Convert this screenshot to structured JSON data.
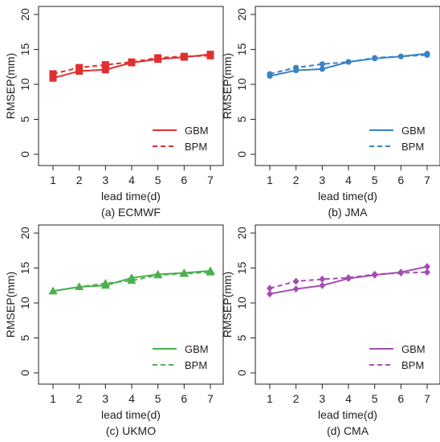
{
  "chart_data": [
    {
      "type": "line",
      "caption": "(a) ECMWF",
      "xlabel": "lead time(d)",
      "ylabel": "RMSEP(mm)",
      "x": [
        1,
        2,
        3,
        4,
        5,
        6,
        7
      ],
      "xlim": [
        1,
        7
      ],
      "ylim": [
        0,
        20
      ],
      "yticks": [
        0,
        5,
        10,
        15,
        20
      ],
      "color": "#e03030",
      "marker": "square",
      "legend_position": "bottom-right",
      "series": [
        {
          "name": "GBM",
          "style": "solid",
          "values": [
            10.9,
            11.9,
            12.1,
            13.1,
            13.6,
            13.9,
            14.3
          ]
        },
        {
          "name": "BPM",
          "style": "dashed",
          "values": [
            11.5,
            12.4,
            12.8,
            13.2,
            13.8,
            14.0,
            14.1
          ]
        }
      ]
    },
    {
      "type": "line",
      "caption": "(b) JMA",
      "xlabel": "lead time(d)",
      "ylabel": "RMSEP(mm)",
      "x": [
        1,
        2,
        3,
        4,
        5,
        6,
        7
      ],
      "xlim": [
        1,
        7
      ],
      "ylim": [
        0,
        20
      ],
      "yticks": [
        0,
        5,
        10,
        15,
        20
      ],
      "color": "#3a82c4",
      "marker": "circle",
      "legend_position": "bottom-right",
      "series": [
        {
          "name": "GBM",
          "style": "solid",
          "values": [
            11.2,
            12.0,
            12.2,
            13.2,
            13.7,
            14.0,
            14.4
          ]
        },
        {
          "name": "BPM",
          "style": "dashed",
          "values": [
            11.5,
            12.4,
            12.9,
            13.2,
            13.8,
            14.0,
            14.2
          ]
        }
      ]
    },
    {
      "type": "line",
      "caption": "(c) UKMO",
      "xlabel": "lead time(d)",
      "ylabel": "RMSEP(mm)",
      "x": [
        1,
        2,
        3,
        4,
        5,
        6,
        7
      ],
      "xlim": [
        1,
        7
      ],
      "ylim": [
        0,
        20
      ],
      "yticks": [
        0,
        5,
        10,
        15,
        20
      ],
      "color": "#4caf50",
      "marker": "triangle",
      "legend_position": "bottom-right",
      "series": [
        {
          "name": "GBM",
          "style": "solid",
          "values": [
            11.7,
            12.3,
            12.5,
            13.6,
            14.1,
            14.3,
            14.6
          ]
        },
        {
          "name": "BPM",
          "style": "dashed",
          "values": [
            11.7,
            12.3,
            12.8,
            13.2,
            14.0,
            14.2,
            14.4
          ]
        }
      ]
    },
    {
      "type": "line",
      "caption": "(d) CMA",
      "xlabel": "lead time(d)",
      "ylabel": "RMSEP(mm)",
      "x": [
        1,
        2,
        3,
        4,
        5,
        6,
        7
      ],
      "xlim": [
        1,
        7
      ],
      "ylim": [
        0,
        20
      ],
      "yticks": [
        0,
        5,
        10,
        15,
        20
      ],
      "color": "#a64db3",
      "marker": "diamond",
      "legend_position": "bottom-right",
      "series": [
        {
          "name": "GBM",
          "style": "solid",
          "values": [
            11.3,
            12.0,
            12.5,
            13.5,
            14.0,
            14.4,
            15.2
          ]
        },
        {
          "name": "BPM",
          "style": "dashed",
          "values": [
            12.1,
            13.1,
            13.4,
            13.6,
            14.1,
            14.3,
            14.4
          ]
        }
      ]
    }
  ]
}
